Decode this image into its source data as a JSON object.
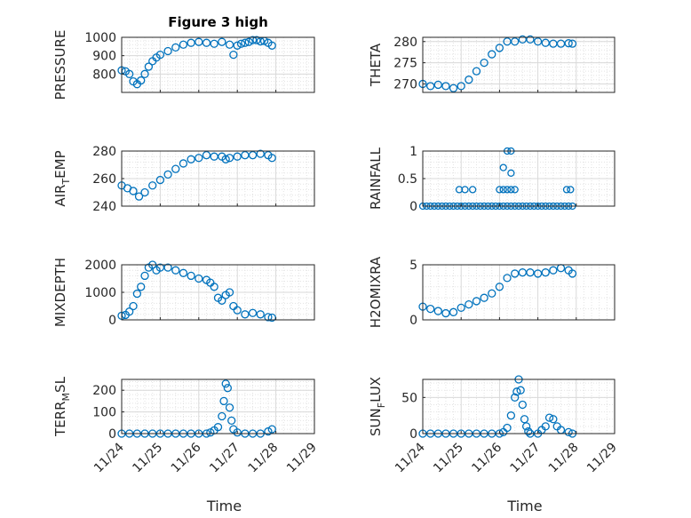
{
  "figure": {
    "title": "Figure 3 high",
    "xlabel": "Time"
  },
  "style": {
    "marker_color": "#0072BD",
    "axis_color": "#262626",
    "grid_color": "#d9d9d9"
  },
  "chart_data": [
    {
      "id": "pressure",
      "type": "scatter",
      "title": "Figure 3 high",
      "ylabel": "PRESSURE",
      "ylim": [
        700,
        1000
      ],
      "yticks": [
        800,
        900,
        1000
      ],
      "xlim": [
        "11/24",
        "11/29"
      ],
      "xticks": [
        "11/24",
        "11/25",
        "11/26",
        "11/27",
        "11/28",
        "11/29"
      ],
      "grid": true,
      "x": [
        0.0,
        0.1,
        0.2,
        0.3,
        0.4,
        0.5,
        0.6,
        0.7,
        0.8,
        0.9,
        1.0,
        1.2,
        1.4,
        1.6,
        1.8,
        2.0,
        2.2,
        2.4,
        2.6,
        2.8,
        2.9,
        3.0,
        3.1,
        3.2,
        3.3,
        3.4,
        3.5,
        3.6,
        3.7,
        3.8,
        3.9
      ],
      "y": [
        820,
        815,
        800,
        760,
        745,
        765,
        800,
        840,
        870,
        890,
        905,
        925,
        945,
        960,
        970,
        975,
        970,
        965,
        975,
        960,
        905,
        955,
        965,
        970,
        975,
        985,
        985,
        978,
        980,
        970,
        955
      ]
    },
    {
      "id": "theta",
      "type": "scatter",
      "ylabel": "THETA",
      "ylim": [
        268,
        281
      ],
      "yticks": [
        270,
        275,
        280
      ],
      "xlim": [
        "11/24",
        "11/29"
      ],
      "xticks": [
        "11/24",
        "11/25",
        "11/26",
        "11/27",
        "11/28",
        "11/29"
      ],
      "grid": true,
      "x": [
        0.0,
        0.2,
        0.4,
        0.6,
        0.8,
        1.0,
        1.2,
        1.4,
        1.6,
        1.8,
        2.0,
        2.2,
        2.4,
        2.6,
        2.8,
        3.0,
        3.2,
        3.4,
        3.6,
        3.8,
        3.9
      ],
      "y": [
        270,
        269.5,
        269.8,
        269.5,
        269,
        269.5,
        271,
        273,
        275,
        277,
        278.5,
        280,
        280,
        280.5,
        280.5,
        280,
        279.7,
        279.5,
        279.5,
        279.6,
        279.5
      ]
    },
    {
      "id": "air_temp",
      "type": "scatter",
      "ylabel": "AIR_TEMP",
      "ylim": [
        240,
        280
      ],
      "yticks": [
        240,
        260,
        280
      ],
      "xlim": [
        "11/24",
        "11/29"
      ],
      "xticks": [
        "11/24",
        "11/25",
        "11/26",
        "11/27",
        "11/28",
        "11/29"
      ],
      "grid": true,
      "x": [
        0.0,
        0.15,
        0.3,
        0.45,
        0.6,
        0.8,
        1.0,
        1.2,
        1.4,
        1.6,
        1.8,
        2.0,
        2.2,
        2.4,
        2.6,
        2.7,
        2.8,
        3.0,
        3.2,
        3.4,
        3.6,
        3.8,
        3.9
      ],
      "y": [
        255,
        253,
        251,
        247,
        250,
        255,
        259,
        263,
        267,
        271,
        274,
        275,
        277,
        276,
        276,
        274,
        275,
        276,
        277,
        277,
        278,
        277,
        275
      ]
    },
    {
      "id": "rainfall",
      "type": "scatter",
      "ylabel": "RAINFALL",
      "ylim": [
        0,
        1
      ],
      "yticks": [
        0,
        0.5,
        1
      ],
      "xlim": [
        "11/24",
        "11/29"
      ],
      "xticks": [
        "11/24",
        "11/25",
        "11/26",
        "11/27",
        "11/28",
        "11/29"
      ],
      "grid": true,
      "x": [
        0.0,
        0.1,
        0.2,
        0.3,
        0.4,
        0.5,
        0.6,
        0.7,
        0.8,
        0.9,
        1.0,
        1.1,
        1.2,
        1.3,
        1.4,
        1.5,
        1.6,
        1.7,
        1.8,
        1.9,
        2.0,
        2.1,
        2.2,
        2.3,
        2.4,
        2.5,
        2.6,
        2.7,
        2.8,
        2.9,
        3.0,
        3.1,
        3.2,
        3.3,
        3.4,
        3.5,
        3.6,
        3.7,
        3.8,
        3.9,
        0.95,
        1.1,
        1.3,
        2.0,
        2.1,
        2.2,
        2.3,
        2.4,
        2.2,
        2.3,
        2.1,
        2.3,
        3.75,
        3.85
      ],
      "y": [
        0,
        0,
        0,
        0,
        0,
        0,
        0,
        0,
        0,
        0,
        0,
        0,
        0,
        0,
        0,
        0,
        0,
        0,
        0,
        0,
        0,
        0,
        0,
        0,
        0,
        0,
        0,
        0,
        0,
        0,
        0,
        0,
        0,
        0,
        0,
        0,
        0,
        0,
        0,
        0,
        0.3,
        0.3,
        0.3,
        0.3,
        0.3,
        0.3,
        0.3,
        0.3,
        1,
        1,
        0.7,
        0.6,
        0.3,
        0.3
      ]
    },
    {
      "id": "mixdepth",
      "type": "scatter",
      "ylabel": "MIXDEPTH",
      "ylim": [
        0,
        2000
      ],
      "yticks": [
        0,
        1000,
        2000
      ],
      "xlim": [
        "11/24",
        "11/29"
      ],
      "xticks": [
        "11/24",
        "11/25",
        "11/26",
        "11/27",
        "11/28",
        "11/29"
      ],
      "grid": true,
      "x": [
        0.0,
        0.1,
        0.2,
        0.3,
        0.4,
        0.5,
        0.6,
        0.7,
        0.8,
        0.9,
        1.0,
        1.2,
        1.4,
        1.6,
        1.8,
        2.0,
        2.2,
        2.3,
        2.4,
        2.5,
        2.6,
        2.7,
        2.8,
        2.9,
        3.0,
        3.2,
        3.4,
        3.6,
        3.8,
        3.9
      ],
      "y": [
        150,
        180,
        300,
        500,
        950,
        1200,
        1600,
        1900,
        2000,
        1800,
        1900,
        1900,
        1800,
        1700,
        1600,
        1500,
        1450,
        1350,
        1200,
        800,
        700,
        900,
        1000,
        500,
        350,
        200,
        250,
        200,
        100,
        80
      ]
    },
    {
      "id": "h2omixra",
      "type": "scatter",
      "ylabel": "H2OMIXRA",
      "ylim": [
        0,
        5
      ],
      "yticks": [
        0,
        5
      ],
      "xlim": [
        "11/24",
        "11/29"
      ],
      "xticks": [
        "11/24",
        "11/25",
        "11/26",
        "11/27",
        "11/28",
        "11/29"
      ],
      "grid": true,
      "x": [
        0.0,
        0.2,
        0.4,
        0.6,
        0.8,
        1.0,
        1.2,
        1.4,
        1.6,
        1.8,
        2.0,
        2.2,
        2.4,
        2.6,
        2.8,
        3.0,
        3.2,
        3.4,
        3.6,
        3.8,
        3.9
      ],
      "y": [
        1.2,
        1.0,
        0.8,
        0.6,
        0.7,
        1.1,
        1.4,
        1.7,
        2.0,
        2.4,
        3.0,
        3.8,
        4.2,
        4.3,
        4.3,
        4.2,
        4.3,
        4.5,
        4.7,
        4.5,
        4.2
      ]
    },
    {
      "id": "terr_msl",
      "type": "scatter",
      "ylabel": "TERR_MSL",
      "ylim": [
        0,
        250
      ],
      "yticks": [
        0,
        100,
        200
      ],
      "xlim": [
        "11/24",
        "11/29"
      ],
      "xticks": [
        "11/24",
        "11/25",
        "11/26",
        "11/27",
        "11/28",
        "11/29"
      ],
      "grid": true,
      "x": [
        0.0,
        0.2,
        0.4,
        0.6,
        0.8,
        1.0,
        1.2,
        1.4,
        1.6,
        1.8,
        2.0,
        2.2,
        2.3,
        2.4,
        2.5,
        2.6,
        2.65,
        2.7,
        2.75,
        2.8,
        2.85,
        2.9,
        3.0,
        3.2,
        3.4,
        3.6,
        3.8,
        3.9
      ],
      "y": [
        0,
        0,
        0,
        0,
        0,
        0,
        0,
        0,
        0,
        0,
        0,
        0,
        5,
        15,
        30,
        80,
        150,
        230,
        210,
        120,
        60,
        20,
        5,
        0,
        0,
        0,
        10,
        20
      ]
    },
    {
      "id": "sun_flux",
      "type": "scatter",
      "ylabel": "SUN_FLUX",
      "ylim": [
        0,
        75
      ],
      "yticks": [
        0,
        50
      ],
      "xlim": [
        "11/24",
        "11/29"
      ],
      "xticks": [
        "11/24",
        "11/25",
        "11/26",
        "11/27",
        "11/28",
        "11/29"
      ],
      "grid": true,
      "x": [
        0.0,
        0.2,
        0.4,
        0.6,
        0.8,
        1.0,
        1.2,
        1.4,
        1.6,
        1.8,
        2.0,
        2.1,
        2.2,
        2.3,
        2.4,
        2.45,
        2.5,
        2.55,
        2.6,
        2.65,
        2.7,
        2.75,
        2.8,
        3.0,
        3.1,
        3.2,
        3.3,
        3.4,
        3.5,
        3.6,
        3.8,
        3.9
      ],
      "y": [
        0,
        0,
        0,
        0,
        0,
        0,
        0,
        0,
        0,
        0,
        0,
        2,
        8,
        25,
        50,
        58,
        75,
        60,
        40,
        20,
        10,
        3,
        0,
        0,
        5,
        10,
        22,
        20,
        10,
        5,
        2,
        0
      ]
    }
  ]
}
